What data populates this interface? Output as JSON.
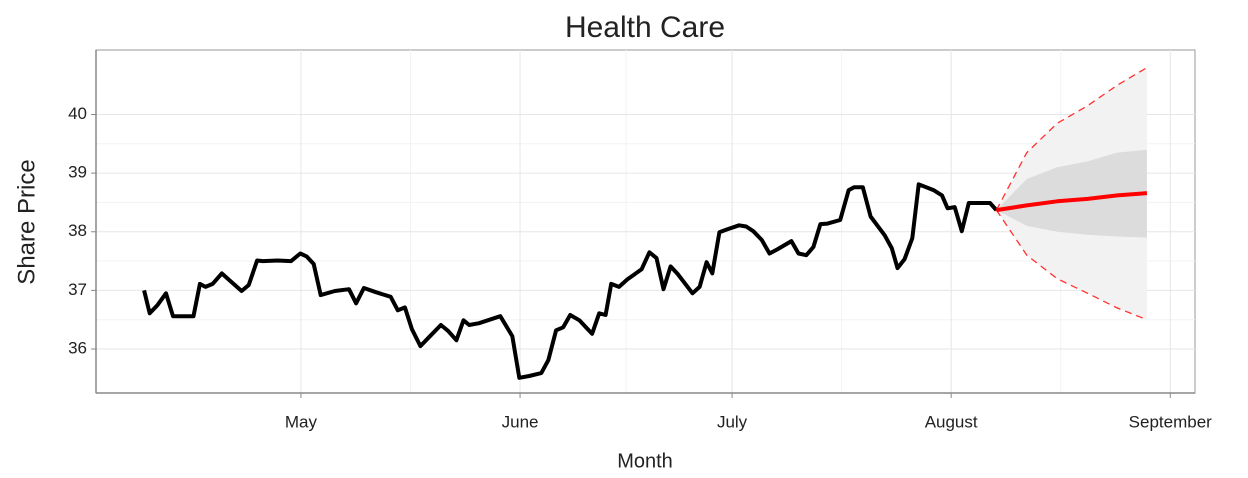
{
  "chart_data": {
    "type": "line",
    "title": "Health Care",
    "x_label": "Month",
    "y_label": "Share Price",
    "xlim": [
      92,
      247.5
    ],
    "ylim": [
      35.25,
      41.1
    ],
    "xticks": [
      {
        "value": 121,
        "label": "May"
      },
      {
        "value": 152,
        "label": "June"
      },
      {
        "value": 182,
        "label": "July"
      },
      {
        "value": 213,
        "label": "August"
      },
      {
        "value": 244,
        "label": "September"
      }
    ],
    "yticks": [
      36,
      37,
      38,
      39,
      40
    ],
    "grid": true,
    "minor_grid": true,
    "bands": [
      {
        "color": "#f2f2f2",
        "border": "#ff3030",
        "x": [
          219.4,
          223.7,
          228,
          232.3,
          236.5,
          240.7
        ],
        "lower": [
          38.37,
          37.6,
          37.2,
          36.95,
          36.7,
          36.5
        ],
        "upper": [
          38.37,
          39.35,
          39.85,
          40.15,
          40.5,
          40.8
        ]
      },
      {
        "color": "#dcdcdc",
        "x": [
          219.4,
          223.7,
          228,
          232.3,
          236.5,
          240.7
        ],
        "lower": [
          38.37,
          38.1,
          38.0,
          37.95,
          37.92,
          37.9
        ],
        "upper": [
          38.37,
          38.9,
          39.1,
          39.2,
          39.35,
          39.4
        ]
      }
    ],
    "series": [
      {
        "color": "#000000",
        "x": [
          98.8,
          99.6,
          100.7,
          101.9,
          102.9,
          105.8,
          106.7,
          107.5,
          108.5,
          109.8,
          110.9,
          112.6,
          113.6,
          114.8,
          115.6,
          117.7,
          119.6,
          120.9,
          121.8,
          122.8,
          123.8,
          125.8,
          127.8,
          128.8,
          129.9,
          131.6,
          133.7,
          134.7,
          135.7,
          136.7,
          137.9,
          139.1,
          140.8,
          141.8,
          143.0,
          144.0,
          144.8,
          146.2,
          149.2,
          150.9,
          151.9,
          153.3,
          155.0,
          156.0,
          157.1,
          158.1,
          159.1,
          160.4,
          161.4,
          162.2,
          163.2,
          164.1,
          164.9,
          166.0,
          167.2,
          169.2,
          170.3,
          171.3,
          172.3,
          173.3,
          174.3,
          176.4,
          177.4,
          178.4,
          179.2,
          180.2,
          181.3,
          183.0,
          184.0,
          185.0,
          186.2,
          187.3,
          188.4,
          190.4,
          191.4,
          192.5,
          193.5,
          194.5,
          195.5,
          197.3,
          198.5,
          199.3,
          200.5,
          201.6,
          203.6,
          204.6,
          205.4,
          206.4,
          207.5,
          208.4,
          210.5,
          211.7,
          212.5,
          213.5,
          214.5,
          215.5,
          217.5,
          218.5,
          219.4
        ],
        "values": [
          37.0,
          36.61,
          36.75,
          36.95,
          36.56,
          36.56,
          37.11,
          37.06,
          37.11,
          37.29,
          37.17,
          36.99,
          37.09,
          37.51,
          37.5,
          37.51,
          37.5,
          37.63,
          37.58,
          37.45,
          36.92,
          36.99,
          37.02,
          36.78,
          37.04,
          36.97,
          36.89,
          36.66,
          36.71,
          36.34,
          36.05,
          36.2,
          36.41,
          36.31,
          36.15,
          36.49,
          36.41,
          36.44,
          36.56,
          36.22,
          35.51,
          35.54,
          35.59,
          35.81,
          36.32,
          36.37,
          36.58,
          36.49,
          36.36,
          36.26,
          36.61,
          36.58,
          37.11,
          37.06,
          37.19,
          37.36,
          37.65,
          37.55,
          37.02,
          37.41,
          37.28,
          36.95,
          37.06,
          37.48,
          37.29,
          37.99,
          38.04,
          38.11,
          38.09,
          38.01,
          37.86,
          37.63,
          37.7,
          37.84,
          37.63,
          37.6,
          37.74,
          38.13,
          38.14,
          38.2,
          38.71,
          38.76,
          38.76,
          38.26,
          37.94,
          37.72,
          37.38,
          37.53,
          37.89,
          38.81,
          38.71,
          38.62,
          38.4,
          38.42,
          38.01,
          38.49,
          38.49,
          38.49,
          38.37
        ]
      },
      {
        "color": "#ff0000",
        "x": [
          219.4,
          223.7,
          228,
          232.3,
          236.5,
          240.7
        ],
        "values": [
          38.37,
          38.45,
          38.52,
          38.56,
          38.62,
          38.66
        ]
      }
    ]
  }
}
